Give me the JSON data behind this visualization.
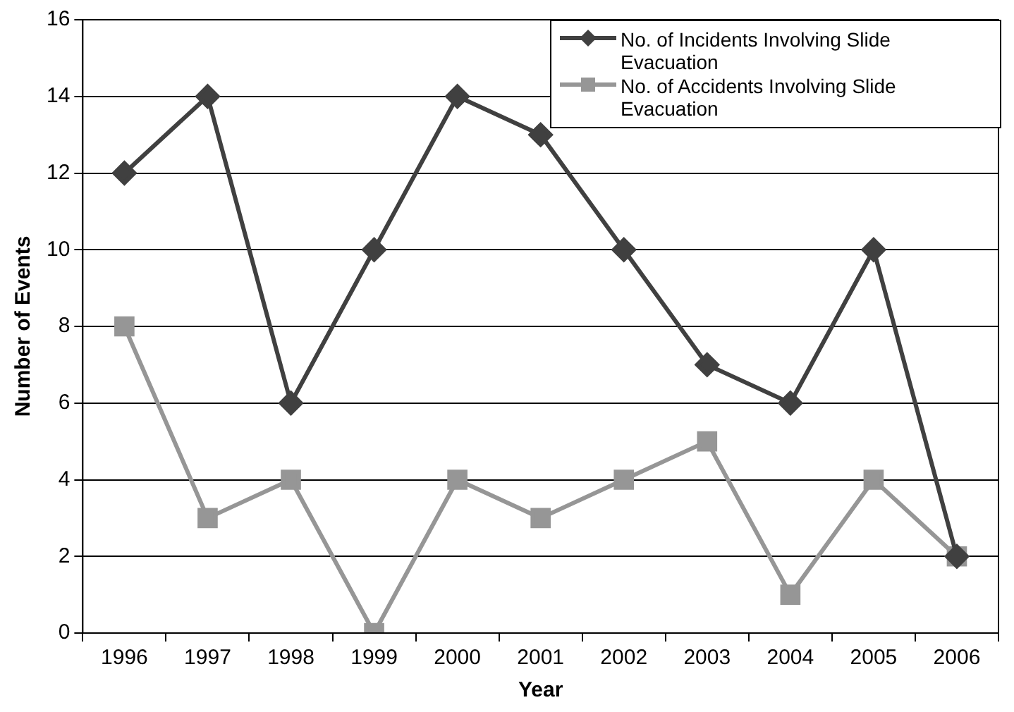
{
  "chart_data": {
    "type": "line",
    "xlabel": "Year",
    "ylabel": "Number of Events",
    "categories": [
      "1996",
      "1997",
      "1998",
      "1999",
      "2000",
      "2001",
      "2002",
      "2003",
      "2004",
      "2005",
      "2006"
    ],
    "series": [
      {
        "name": "No. of Incidents Involving Slide Evacuation",
        "color": "#404040",
        "marker": "diamond",
        "values": [
          12,
          14,
          6,
          10,
          14,
          13,
          10,
          7,
          6,
          10,
          2
        ]
      },
      {
        "name": "No. of Accidents Involving Slide Evacuation",
        "color": "#969696",
        "marker": "square",
        "values": [
          8,
          3,
          4,
          0,
          4,
          3,
          4,
          5,
          1,
          4,
          2
        ]
      }
    ],
    "ylim": [
      0,
      16
    ],
    "yticks": [
      0,
      2,
      4,
      6,
      8,
      10,
      12,
      14,
      16
    ],
    "grid": "y",
    "legend": "top right",
    "line_style": "solid"
  }
}
